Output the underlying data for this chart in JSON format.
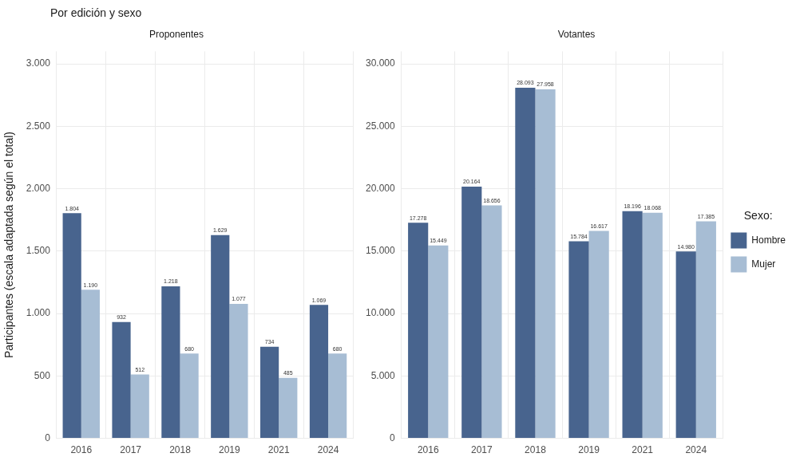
{
  "chart_data": [
    {
      "type": "bar",
      "subtitle": "Por edición y sexo",
      "title": "Proponentes",
      "ylabel": "Participantes (escala adaptada según el total)",
      "categories": [
        "2016",
        "2017",
        "2018",
        "2019",
        "2021",
        "2024"
      ],
      "series": [
        {
          "color": "#48648e",
          "values": [
            1804,
            932,
            1218,
            1629,
            734,
            1069
          ],
          "value_labels": [
            "1.804",
            "932",
            "1.218",
            "1.629",
            "734",
            "1.069"
          ]
        },
        {
          "color": "#a7bdd4",
          "values": [
            1190,
            512,
            680,
            1077,
            485,
            680
          ],
          "value_labels": [
            "1.190",
            "512",
            "680",
            "1.077",
            "485",
            "680"
          ]
        }
      ],
      "ylim": [
        0,
        3100
      ],
      "yticks": [
        {
          "value": 0,
          "label": "0"
        },
        {
          "value": 500,
          "label": "500"
        },
        {
          "value": 1000,
          "label": "1.000"
        },
        {
          "value": 1500,
          "label": "1.500"
        },
        {
          "value": 2000,
          "label": "2.000"
        },
        {
          "value": 2500,
          "label": "2.500"
        },
        {
          "value": 3000,
          "label": "3.000"
        }
      ],
      "grid": true
    },
    {
      "type": "bar",
      "title": "Votantes",
      "categories": [
        "2016",
        "2017",
        "2018",
        "2019",
        "2021",
        "2024"
      ],
      "series": [
        {
          "name": "Hombre",
          "color": "#48648e",
          "values": [
            17278,
            20164,
            28093,
            15784,
            18196,
            14980
          ],
          "value_labels": [
            "17.278",
            "20.164",
            "28.093",
            "15.784",
            "18.196",
            "14.980"
          ]
        },
        {
          "name": "Mujer",
          "color": "#a7bdd4",
          "values": [
            15449,
            18656,
            27958,
            16617,
            18068,
            17385
          ],
          "value_labels": [
            "15.449",
            "18.656",
            "27.958",
            "16.617",
            "18.068",
            "17.385"
          ]
        }
      ],
      "ylim": [
        0,
        31000
      ],
      "yticks": [
        {
          "value": 0,
          "label": "0"
        },
        {
          "value": 5000,
          "label": "5.000"
        },
        {
          "value": 10000,
          "label": "10.000"
        },
        {
          "value": 15000,
          "label": "15.000"
        },
        {
          "value": 20000,
          "label": "20.000"
        },
        {
          "value": 25000,
          "label": "25.000"
        },
        {
          "value": 30000,
          "label": "30.000"
        }
      ],
      "grid": true,
      "legend": "right",
      "legend_title": "Sexo:"
    }
  ]
}
